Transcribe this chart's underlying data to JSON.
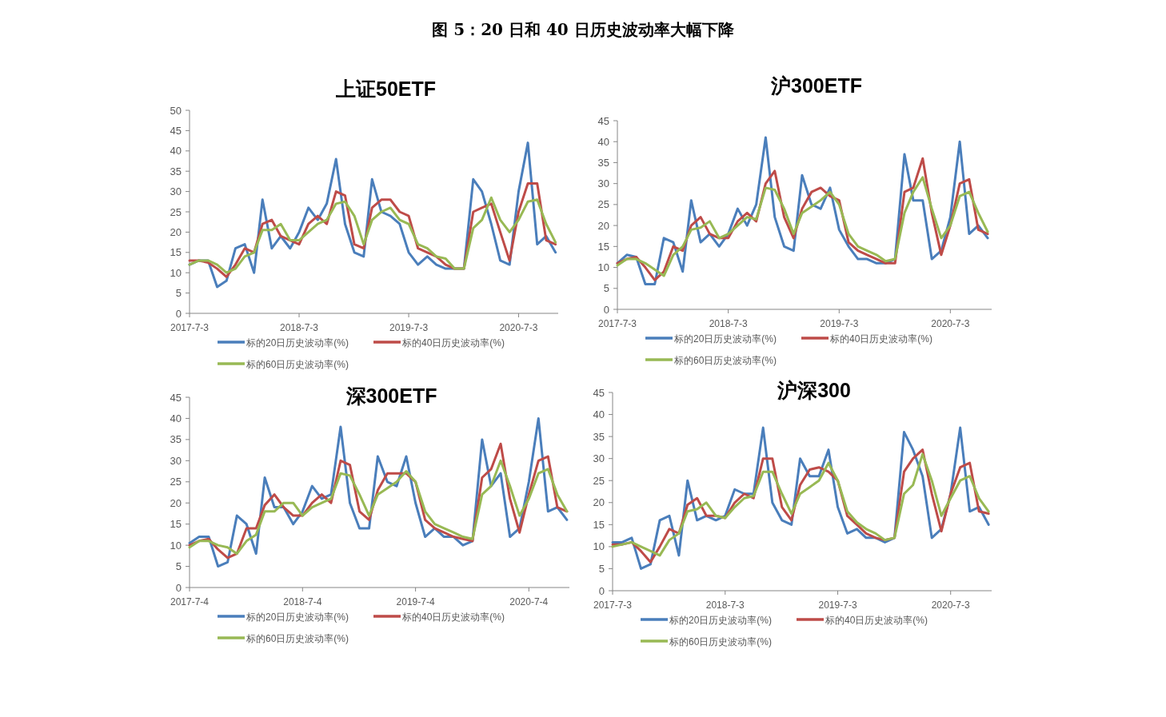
{
  "chart_data": [
    {
      "type": "other",
      "title": "图 5：20 日和 40 日历史波动率大幅下降"
    },
    {
      "type": "line",
      "title": "上证50ETF",
      "legend": "bottom",
      "x": [
        "2017-07-03",
        "2017-08-03",
        "2017-09-03",
        "2017-10-03",
        "2017-11-03",
        "2017-12-03",
        "2018-01-03",
        "2018-02-03",
        "2018-03-03",
        "2018-04-03",
        "2018-05-03",
        "2018-06-03",
        "2018-07-03",
        "2018-08-03",
        "2018-09-03",
        "2018-10-03",
        "2018-11-03",
        "2018-12-03",
        "2019-01-03",
        "2019-02-03",
        "2019-03-03",
        "2019-04-03",
        "2019-05-03",
        "2019-06-03",
        "2019-07-03",
        "2019-08-03",
        "2019-09-03",
        "2019-10-03",
        "2019-11-03",
        "2019-12-03",
        "2020-01-03",
        "2020-02-03",
        "2020-03-03",
        "2020-04-03",
        "2020-05-03",
        "2020-06-03",
        "2020-07-03",
        "2020-08-03",
        "2020-09-03",
        "2020-10-03",
        "2020-11-03"
      ],
      "xlim": [
        "2017-07-03",
        "2020-11-12"
      ],
      "ylim": [
        0,
        50
      ],
      "yticks": [
        0,
        5,
        10,
        15,
        20,
        25,
        30,
        35,
        40,
        45,
        50
      ],
      "xticks": [
        {
          "value": "2017-07-03",
          "label": "2017-7-3"
        },
        {
          "value": "2018-07-03",
          "label": "2018-7-3"
        },
        {
          "value": "2019-07-03",
          "label": "2019-7-3"
        },
        {
          "value": "2020-07-03",
          "label": "2020-7-3"
        }
      ],
      "series": [
        {
          "name": "标的20日历史波动率(%)",
          "color": "#4a7ebb",
          "values": [
            12,
            13,
            13,
            6.5,
            8,
            16,
            17,
            10,
            28,
            16,
            19,
            16,
            20,
            26,
            23,
            27,
            38,
            22,
            15,
            14,
            33,
            25,
            24,
            22,
            15,
            12,
            14,
            12,
            11,
            11,
            11,
            33,
            30,
            22,
            13,
            12,
            30,
            42,
            17,
            19,
            15
          ]
        },
        {
          "name": "标的40日历史波动率(%)",
          "color": "#be4b48",
          "values": [
            13,
            13,
            12.5,
            11,
            9,
            12,
            16,
            15,
            22,
            23,
            19,
            18,
            17,
            22,
            24,
            22,
            30,
            29,
            17,
            16,
            26,
            28,
            28,
            25,
            24,
            16,
            15,
            14,
            12,
            11,
            11,
            25,
            26,
            27,
            20,
            13,
            25,
            32,
            32,
            18,
            17
          ]
        },
        {
          "name": "标的60日历史波动率(%)",
          "color": "#98b954",
          "values": [
            12,
            13,
            13,
            12,
            10,
            11,
            14,
            15,
            20.5,
            20.5,
            22,
            18,
            18,
            20,
            22,
            23,
            27,
            27.5,
            24,
            17,
            23,
            25,
            26,
            23,
            22,
            17,
            16,
            14,
            13.5,
            11,
            11,
            21,
            23,
            28.5,
            23,
            20,
            23,
            27.5,
            28,
            22,
            17.5
          ]
        }
      ]
    },
    {
      "type": "line",
      "title": "沪300ETF",
      "legend": "bottom",
      "x": [
        "2017-07-03",
        "2017-08-03",
        "2017-09-03",
        "2017-10-03",
        "2017-11-03",
        "2017-12-03",
        "2018-01-03",
        "2018-02-03",
        "2018-03-03",
        "2018-04-03",
        "2018-05-03",
        "2018-06-03",
        "2018-07-03",
        "2018-08-03",
        "2018-09-03",
        "2018-10-03",
        "2018-11-03",
        "2018-12-03",
        "2019-01-03",
        "2019-02-03",
        "2019-03-03",
        "2019-04-03",
        "2019-05-03",
        "2019-06-03",
        "2019-07-03",
        "2019-08-03",
        "2019-09-03",
        "2019-10-03",
        "2019-11-03",
        "2019-12-03",
        "2020-01-03",
        "2020-02-03",
        "2020-03-03",
        "2020-04-03",
        "2020-05-03",
        "2020-06-03",
        "2020-07-03",
        "2020-08-03",
        "2020-09-03",
        "2020-10-03",
        "2020-11-03"
      ],
      "xlim": [
        "2017-07-03",
        "2020-11-16"
      ],
      "ylim": [
        0,
        45
      ],
      "yticks": [
        0,
        5,
        10,
        15,
        20,
        25,
        30,
        35,
        40,
        45
      ],
      "xticks": [
        {
          "value": "2017-07-03",
          "label": "2017-7-3"
        },
        {
          "value": "2018-07-03",
          "label": "2018-7-3"
        },
        {
          "value": "2019-07-03",
          "label": "2019-7-3"
        },
        {
          "value": "2020-07-03",
          "label": "2020-7-3"
        }
      ],
      "series": [
        {
          "name": "标的20日历史波动率(%)",
          "color": "#4a7ebb",
          "values": [
            11,
            13,
            12.5,
            6,
            6,
            17,
            16,
            9,
            26,
            16,
            18,
            15,
            18,
            24,
            20,
            25,
            41,
            22,
            15,
            14,
            32,
            25,
            24,
            29,
            19,
            15,
            12,
            12,
            11,
            11,
            12,
            37,
            26,
            26,
            12,
            14,
            22,
            40,
            18,
            20,
            17
          ]
        },
        {
          "name": "标的40日历史波动率(%)",
          "color": "#be4b48",
          "values": [
            11,
            12,
            12.5,
            10,
            7,
            9,
            15,
            14,
            20,
            22,
            18,
            17,
            17,
            21,
            23,
            21,
            30,
            33,
            22,
            17,
            24,
            28,
            29,
            27,
            26,
            16,
            14,
            13,
            12,
            11,
            11,
            28,
            29,
            36,
            23,
            13,
            20,
            30,
            31,
            19,
            18
          ]
        },
        {
          "name": "标的60日历史波动率(%)",
          "color": "#98b954",
          "values": [
            10.5,
            12,
            12,
            11,
            9.5,
            8,
            13,
            15,
            19,
            19.5,
            21,
            17,
            18,
            20,
            22,
            21.5,
            29,
            28.5,
            24,
            18,
            23,
            24.5,
            26,
            28,
            25,
            18,
            15,
            14,
            13,
            11.5,
            12,
            23,
            28,
            31.5,
            24,
            17,
            20,
            27,
            28,
            23,
            18.5
          ]
        }
      ]
    },
    {
      "type": "line",
      "title": "深300ETF",
      "legend": "bottom",
      "x": [
        "2017-07-04",
        "2017-08-04",
        "2017-09-04",
        "2017-10-04",
        "2017-11-04",
        "2017-12-04",
        "2018-01-04",
        "2018-02-04",
        "2018-03-04",
        "2018-04-04",
        "2018-05-04",
        "2018-06-04",
        "2018-07-04",
        "2018-08-04",
        "2018-09-04",
        "2018-10-04",
        "2018-11-04",
        "2018-12-04",
        "2019-01-04",
        "2019-02-04",
        "2019-03-04",
        "2019-04-04",
        "2019-05-04",
        "2019-06-04",
        "2019-07-04",
        "2019-08-04",
        "2019-09-04",
        "2019-10-04",
        "2019-11-04",
        "2019-12-04",
        "2020-01-04",
        "2020-02-04",
        "2020-03-04",
        "2020-04-04",
        "2020-05-04",
        "2020-06-04",
        "2020-07-04",
        "2020-08-04",
        "2020-09-04",
        "2020-10-04",
        "2020-11-04"
      ],
      "xlim": [
        "2017-07-04",
        "2020-11-12"
      ],
      "ylim": [
        0,
        45
      ],
      "yticks": [
        0,
        5,
        10,
        15,
        20,
        25,
        30,
        35,
        40,
        45
      ],
      "xticks": [
        {
          "value": "2017-07-04",
          "label": "2017-7-4"
        },
        {
          "value": "2018-07-04",
          "label": "2018-7-4"
        },
        {
          "value": "2019-07-04",
          "label": "2019-7-4"
        },
        {
          "value": "2020-07-04",
          "label": "2020-7-4"
        }
      ],
      "series": [
        {
          "name": "标的20日历史波动率(%)",
          "color": "#4a7ebb",
          "values": [
            10.5,
            12,
            12,
            5,
            6,
            17,
            15,
            8,
            26,
            19,
            19,
            15,
            18,
            24,
            21,
            22,
            38,
            20,
            14,
            14,
            31,
            25,
            24,
            31,
            20,
            12,
            14,
            12,
            12,
            10,
            11,
            35,
            24,
            27,
            12,
            14,
            25,
            40,
            18,
            19,
            16
          ]
        },
        {
          "name": "标的40日历史波动率(%)",
          "color": "#be4b48",
          "values": [
            10,
            11,
            11.5,
            9,
            7,
            8,
            14,
            14,
            19.5,
            22,
            19,
            17,
            17,
            20,
            22,
            20,
            30,
            29,
            18,
            16,
            23,
            27,
            27,
            27,
            25,
            16,
            14,
            13,
            12,
            11.5,
            11,
            26,
            28,
            34,
            21,
            13,
            22,
            30,
            31,
            19,
            18
          ]
        },
        {
          "name": "标的60日历史波动率(%)",
          "color": "#98b954",
          "values": [
            9.5,
            11,
            11,
            10,
            9.5,
            8,
            11,
            12.5,
            18,
            18,
            20,
            20,
            17,
            19,
            20,
            21,
            27,
            26.5,
            22,
            17,
            22,
            23.5,
            25,
            27.5,
            25,
            18,
            15,
            14,
            13,
            12,
            11.5,
            22,
            24,
            30,
            24,
            17,
            21,
            27,
            28,
            22,
            18
          ]
        }
      ]
    },
    {
      "type": "line",
      "title": "沪深300",
      "legend": "bottom",
      "x": [
        "2017-07-03",
        "2017-08-03",
        "2017-09-03",
        "2017-10-03",
        "2017-11-03",
        "2017-12-03",
        "2018-01-03",
        "2018-02-03",
        "2018-03-03",
        "2018-04-03",
        "2018-05-03",
        "2018-06-03",
        "2018-07-03",
        "2018-08-03",
        "2018-09-03",
        "2018-10-03",
        "2018-11-03",
        "2018-12-03",
        "2019-01-03",
        "2019-02-03",
        "2019-03-03",
        "2019-04-03",
        "2019-05-03",
        "2019-06-03",
        "2019-07-03",
        "2019-08-03",
        "2019-09-03",
        "2019-10-03",
        "2019-11-03",
        "2019-12-03",
        "2020-01-03",
        "2020-02-03",
        "2020-03-03",
        "2020-04-03",
        "2020-05-03",
        "2020-06-03",
        "2020-07-03",
        "2020-08-03",
        "2020-09-03",
        "2020-10-03",
        "2020-11-03"
      ],
      "xlim": [
        "2017-07-03",
        "2020-11-13"
      ],
      "ylim": [
        0,
        45
      ],
      "yticks": [
        0,
        5,
        10,
        15,
        20,
        25,
        30,
        35,
        40,
        45
      ],
      "xticks": [
        {
          "value": "2017-07-03",
          "label": "2017-7-3"
        },
        {
          "value": "2018-07-03",
          "label": "2018-7-3"
        },
        {
          "value": "2019-07-03",
          "label": "2019-7-3"
        },
        {
          "value": "2020-07-03",
          "label": "2020-7-3"
        }
      ],
      "series": [
        {
          "name": "标的20日历史波动率(%)",
          "color": "#4a7ebb",
          "values": [
            11,
            11,
            12,
            5,
            6,
            16,
            17,
            8,
            25,
            16,
            17,
            16,
            17,
            23,
            22,
            22,
            37,
            20,
            16,
            15,
            30,
            26,
            26,
            32,
            19,
            13,
            14,
            12,
            12,
            11,
            12,
            36,
            32,
            26,
            12,
            14,
            22,
            37,
            18,
            19,
            15
          ]
        },
        {
          "name": "标的40日历史波动率(%)",
          "color": "#be4b48",
          "values": [
            10.5,
            10.5,
            11,
            9,
            6.5,
            10,
            14,
            13,
            19.5,
            21,
            17,
            17,
            16.5,
            20,
            22,
            21,
            30,
            30,
            19,
            16,
            24,
            27.5,
            28,
            27,
            25,
            17,
            15,
            13,
            12,
            11.5,
            12,
            27,
            30,
            32,
            22,
            13.5,
            22,
            28,
            29,
            18,
            17.5
          ]
        },
        {
          "name": "标的60日历史波动率(%)",
          "color": "#98b954",
          "values": [
            10,
            10.5,
            11,
            10,
            9,
            8,
            11.5,
            13,
            18,
            18.5,
            20,
            17,
            16.5,
            19,
            21,
            21.5,
            27,
            27,
            22,
            17.5,
            22,
            23.5,
            25,
            29,
            25,
            18,
            15.5,
            14,
            13,
            11.5,
            12,
            22,
            24,
            31,
            25,
            17,
            21,
            25,
            26,
            21,
            18
          ]
        }
      ]
    }
  ]
}
